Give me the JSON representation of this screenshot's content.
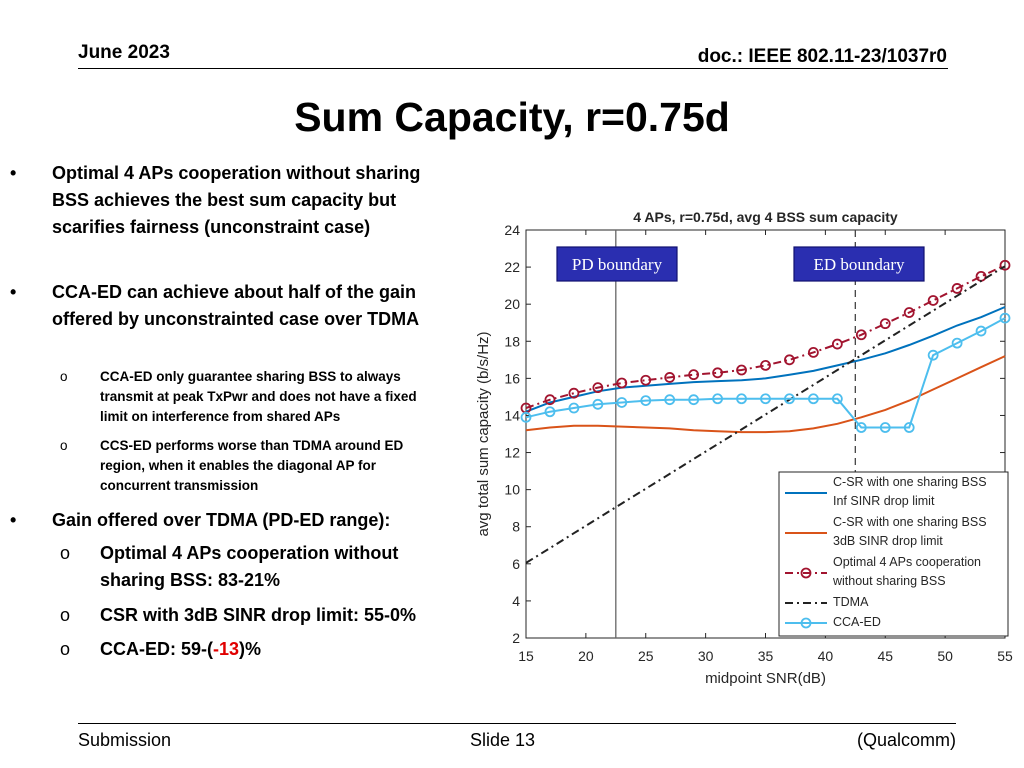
{
  "header": {
    "date": "June 2023",
    "doc": "doc.: IEEE 802.11-23/1037r0"
  },
  "slide_title": "Sum Capacity, r=0.75d",
  "bullets": {
    "b1": "Optimal 4 APs cooperation without sharing BSS achieves the best sum capacity but scarifies fairness (unconstraint case)",
    "b2": "CCA-ED can achieve about half of the gain offered by unconstrainted case over TDMA",
    "b2_sub1": "CCA-ED only guarantee sharing BSS to always transmit at peak TxPwr and does not have a fixed limit on interference from shared APs",
    "b2_sub2": "CCS-ED performs worse than TDMA around ED region, when it enables the diagonal AP for concurrent transmission",
    "b3": "Gain offered over TDMA (PD-ED range):",
    "b3_sub1": "Optimal 4 APs cooperation without sharing BSS: 83-21%",
    "b3_sub2": "CSR with 3dB SINR drop limit: 55-0%",
    "b3_sub3_pre": "CCA-ED: 59-(",
    "b3_sub3_red": "-13",
    "b3_sub3_post": ")%",
    "bullet_mark": "•",
    "sub_mark": "o"
  },
  "footer": {
    "left": "Submission",
    "center": "Slide 13",
    "right": "(Qualcomm)"
  },
  "chart_data": {
    "type": "line",
    "title": "4 APs, r=0.75d, avg 4 BSS sum capacity",
    "xlabel": "midpoint SNR(dB)",
    "ylabel": "avg total sum capacity (b/s/Hz)",
    "xlim": [
      15,
      55
    ],
    "ylim": [
      2,
      24
    ],
    "xticks": [
      15,
      20,
      25,
      30,
      35,
      40,
      45,
      50,
      55
    ],
    "yticks": [
      2,
      4,
      6,
      8,
      10,
      12,
      14,
      16,
      18,
      20,
      22,
      24
    ],
    "vlines": [
      {
        "x": 22.5,
        "style": "solid",
        "label": "PD boundary"
      },
      {
        "x": 42.5,
        "style": "dashed",
        "label": "ED boundary"
      }
    ],
    "x": [
      15,
      17,
      19,
      21,
      23,
      25,
      27,
      29,
      31,
      33,
      35,
      37,
      39,
      41,
      43,
      45,
      47,
      49,
      51,
      53,
      55
    ],
    "series": [
      {
        "name": "C-SR with one sharing BSS Inf SINR drop limit",
        "color": "#0072BD",
        "style": "solid",
        "marker": "none",
        "values": [
          14.2,
          14.7,
          15.0,
          15.3,
          15.5,
          15.6,
          15.7,
          15.8,
          15.85,
          15.9,
          16.0,
          16.2,
          16.4,
          16.7,
          17.0,
          17.35,
          17.8,
          18.3,
          18.85,
          19.3,
          19.85
        ]
      },
      {
        "name": "C-SR with one sharing BSS 3dB SINR drop limit",
        "color": "#D95319",
        "style": "solid",
        "marker": "none",
        "values": [
          13.2,
          13.35,
          13.45,
          13.45,
          13.4,
          13.35,
          13.3,
          13.2,
          13.15,
          13.1,
          13.1,
          13.15,
          13.3,
          13.55,
          13.9,
          14.3,
          14.8,
          15.4,
          16.0,
          16.6,
          17.2
        ]
      },
      {
        "name": "Optimal 4 APs cooperation without sharing BSS",
        "color": "#A2142F",
        "style": "dashdot",
        "marker": "circle",
        "values": [
          14.4,
          14.85,
          15.2,
          15.5,
          15.75,
          15.9,
          16.05,
          16.2,
          16.3,
          16.45,
          16.7,
          17.0,
          17.4,
          17.85,
          18.35,
          18.95,
          19.55,
          20.2,
          20.85,
          21.5,
          22.1
        ]
      },
      {
        "name": "TDMA",
        "color": "#222222",
        "style": "dashdot",
        "marker": "none",
        "values": [
          6.05,
          6.85,
          7.65,
          8.45,
          9.25,
          10.05,
          10.85,
          11.65,
          12.45,
          13.25,
          14.05,
          14.85,
          15.65,
          16.45,
          17.25,
          18.05,
          18.85,
          19.65,
          20.45,
          21.25,
          22.05
        ]
      },
      {
        "name": "CCA-ED",
        "color": "#4DBEEE",
        "style": "solid",
        "marker": "circle",
        "values": [
          13.9,
          14.2,
          14.4,
          14.6,
          14.7,
          14.8,
          14.85,
          14.85,
          14.9,
          14.9,
          14.9,
          14.9,
          14.9,
          14.9,
          13.35,
          13.35,
          13.35,
          17.25,
          17.9,
          18.55,
          19.25
        ]
      }
    ],
    "legend_position": "bottom-right"
  }
}
